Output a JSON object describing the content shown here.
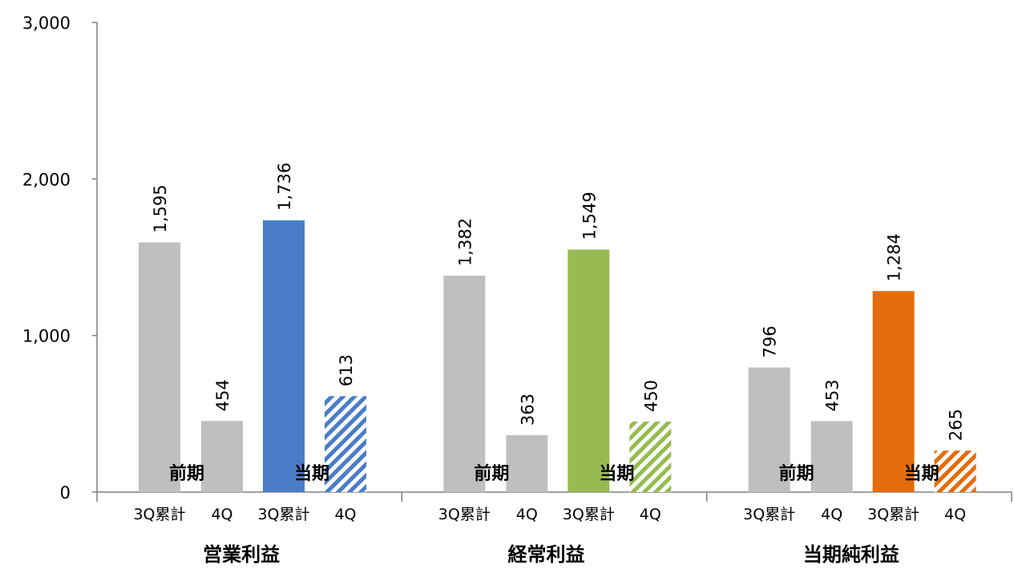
{
  "chart_data": {
    "type": "bar",
    "ylim": [
      0,
      3000
    ],
    "yticks": [
      "0",
      "1,000",
      "2,000",
      "3,000"
    ],
    "ytick_values": [
      0,
      1000,
      2000,
      3000
    ],
    "grid": false,
    "groups": [
      {
        "label": "営業利益",
        "accent": "#4A7CC7",
        "bars": [
          {
            "period": "前期",
            "sub": "3Q累計",
            "value": 1595,
            "value_label": "1,595",
            "style": "gray"
          },
          {
            "period": "前期",
            "sub": "4Q",
            "value": 454,
            "value_label": "454",
            "style": "gray"
          },
          {
            "period": "当期",
            "sub": "3Q累計",
            "value": 1736,
            "value_label": "1,736",
            "style": "solid"
          },
          {
            "period": "当期",
            "sub": "4Q",
            "value": 613,
            "value_label": "613",
            "style": "hatch"
          }
        ]
      },
      {
        "label": "経常利益",
        "accent": "#97BB50",
        "bars": [
          {
            "period": "前期",
            "sub": "3Q累計",
            "value": 1382,
            "value_label": "1,382",
            "style": "gray"
          },
          {
            "period": "前期",
            "sub": "4Q",
            "value": 363,
            "value_label": "363",
            "style": "gray"
          },
          {
            "period": "当期",
            "sub": "3Q累計",
            "value": 1549,
            "value_label": "1,549",
            "style": "solid"
          },
          {
            "period": "当期",
            "sub": "4Q",
            "value": 450,
            "value_label": "450",
            "style": "hatch"
          }
        ]
      },
      {
        "label": "当期純利益",
        "accent": "#E46C0A",
        "bars": [
          {
            "period": "前期",
            "sub": "3Q累計",
            "value": 796,
            "value_label": "796",
            "style": "gray"
          },
          {
            "period": "前期",
            "sub": "4Q",
            "value": 453,
            "value_label": "453",
            "style": "gray"
          },
          {
            "period": "当期",
            "sub": "3Q累計",
            "value": 1284,
            "value_label": "1,284",
            "style": "solid"
          },
          {
            "period": "当期",
            "sub": "4Q",
            "value": 265,
            "value_label": "265",
            "style": "hatch"
          }
        ]
      }
    ],
    "period_labels": [
      "前期",
      "当期"
    ],
    "gray_color": "#BFBFBF"
  }
}
